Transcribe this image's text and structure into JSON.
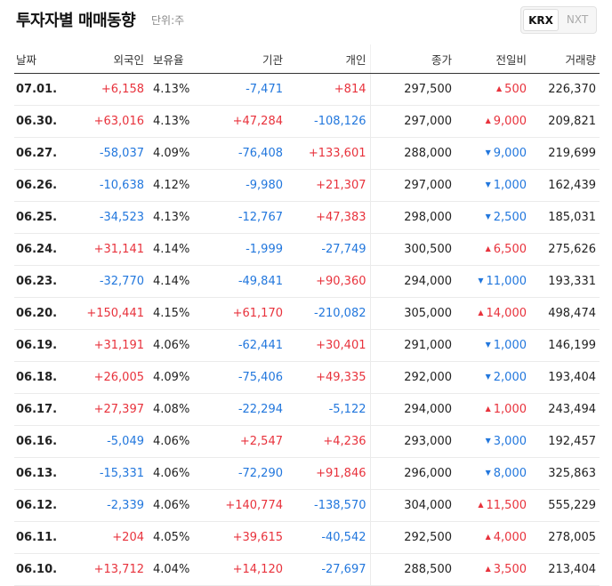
{
  "header": {
    "title": "투자자별 매매동향",
    "unit": "단위:주"
  },
  "market_toggle": {
    "options": [
      "KRX",
      "NXT"
    ],
    "selected": "KRX"
  },
  "colors": {
    "up": "#e8323c",
    "down": "#2277dd"
  },
  "table": {
    "columns": [
      "날짜",
      "외국인",
      "보유율",
      "기관",
      "개인",
      "종가",
      "전일비",
      "거래량"
    ],
    "rows": [
      {
        "date": "07.01.",
        "foreign": "+6,158",
        "ratio": "4.13%",
        "inst": "-7,471",
        "indiv": "+814",
        "close": "297,500",
        "change": "500",
        "dir": "up",
        "volume": "226,370"
      },
      {
        "date": "06.30.",
        "foreign": "+63,016",
        "ratio": "4.13%",
        "inst": "+47,284",
        "indiv": "-108,126",
        "close": "297,000",
        "change": "9,000",
        "dir": "up",
        "volume": "209,821"
      },
      {
        "date": "06.27.",
        "foreign": "-58,037",
        "ratio": "4.09%",
        "inst": "-76,408",
        "indiv": "+133,601",
        "close": "288,000",
        "change": "9,000",
        "dir": "down",
        "volume": "219,699"
      },
      {
        "date": "06.26.",
        "foreign": "-10,638",
        "ratio": "4.12%",
        "inst": "-9,980",
        "indiv": "+21,307",
        "close": "297,000",
        "change": "1,000",
        "dir": "down",
        "volume": "162,439"
      },
      {
        "date": "06.25.",
        "foreign": "-34,523",
        "ratio": "4.13%",
        "inst": "-12,767",
        "indiv": "+47,383",
        "close": "298,000",
        "change": "2,500",
        "dir": "down",
        "volume": "185,031"
      },
      {
        "date": "06.24.",
        "foreign": "+31,141",
        "ratio": "4.14%",
        "inst": "-1,999",
        "indiv": "-27,749",
        "close": "300,500",
        "change": "6,500",
        "dir": "up",
        "volume": "275,626"
      },
      {
        "date": "06.23.",
        "foreign": "-32,770",
        "ratio": "4.14%",
        "inst": "-49,841",
        "indiv": "+90,360",
        "close": "294,000",
        "change": "11,000",
        "dir": "down",
        "volume": "193,331"
      },
      {
        "date": "06.20.",
        "foreign": "+150,441",
        "ratio": "4.15%",
        "inst": "+61,170",
        "indiv": "-210,082",
        "close": "305,000",
        "change": "14,000",
        "dir": "up",
        "volume": "498,474"
      },
      {
        "date": "06.19.",
        "foreign": "+31,191",
        "ratio": "4.06%",
        "inst": "-62,441",
        "indiv": "+30,401",
        "close": "291,000",
        "change": "1,000",
        "dir": "down",
        "volume": "146,199"
      },
      {
        "date": "06.18.",
        "foreign": "+26,005",
        "ratio": "4.09%",
        "inst": "-75,406",
        "indiv": "+49,335",
        "close": "292,000",
        "change": "2,000",
        "dir": "down",
        "volume": "193,404"
      },
      {
        "date": "06.17.",
        "foreign": "+27,397",
        "ratio": "4.08%",
        "inst": "-22,294",
        "indiv": "-5,122",
        "close": "294,000",
        "change": "1,000",
        "dir": "up",
        "volume": "243,494"
      },
      {
        "date": "06.16.",
        "foreign": "-5,049",
        "ratio": "4.06%",
        "inst": "+2,547",
        "indiv": "+4,236",
        "close": "293,000",
        "change": "3,000",
        "dir": "down",
        "volume": "192,457"
      },
      {
        "date": "06.13.",
        "foreign": "-15,331",
        "ratio": "4.06%",
        "inst": "-72,290",
        "indiv": "+91,846",
        "close": "296,000",
        "change": "8,000",
        "dir": "down",
        "volume": "325,863"
      },
      {
        "date": "06.12.",
        "foreign": "-2,339",
        "ratio": "4.06%",
        "inst": "+140,774",
        "indiv": "-138,570",
        "close": "304,000",
        "change": "11,500",
        "dir": "up",
        "volume": "555,229"
      },
      {
        "date": "06.11.",
        "foreign": "+204",
        "ratio": "4.05%",
        "inst": "+39,615",
        "indiv": "-40,542",
        "close": "292,500",
        "change": "4,000",
        "dir": "up",
        "volume": "278,005"
      },
      {
        "date": "06.10.",
        "foreign": "+13,712",
        "ratio": "4.04%",
        "inst": "+14,120",
        "indiv": "-27,697",
        "close": "288,500",
        "change": "3,500",
        "dir": "up",
        "volume": "213,404"
      }
    ]
  }
}
